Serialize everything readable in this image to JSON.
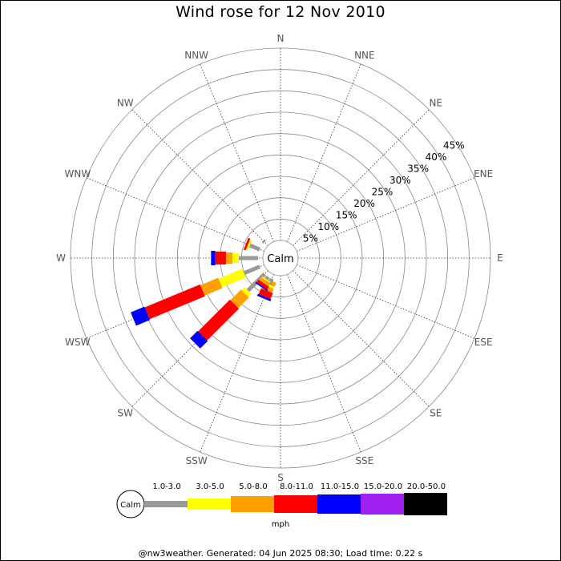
{
  "title": "Wind rose for 12 Nov 2010",
  "footer": "@nw3weather. Generated: 04 Jun 2025 08:30; Load time: 0.22 s",
  "colors": {
    "background": "#ffffff",
    "grid_ring": "#888888",
    "spoke": "#333333",
    "bins": [
      "#999999",
      "#ffff00",
      "#ffa000",
      "#ff0000",
      "#0000ff",
      "#a020f0",
      "#000000"
    ]
  },
  "chart_data": {
    "type": "wind-rose",
    "title": "Wind rose for 12 Nov 2010",
    "unit": "mph",
    "calm_label": "Calm",
    "directions": [
      "N",
      "NNE",
      "NE",
      "ENE",
      "E",
      "ESE",
      "SE",
      "SSE",
      "S",
      "SSW",
      "SW",
      "WSW",
      "W",
      "WNW",
      "NW",
      "NNW"
    ],
    "radial_ticks": [
      "5%",
      "10%",
      "15%",
      "20%",
      "25%",
      "30%",
      "35%",
      "40%",
      "45%"
    ],
    "radial_max": 45,
    "speed_bins": [
      "1.0-3.0",
      "3.0-5.0",
      "5.0-8.0",
      "8.0-11.0",
      "11.0-15.0",
      "15.0-20.0",
      "20.0-50.0"
    ],
    "series": [
      {
        "direction": "SSW",
        "values": [
          0.5,
          0,
          1.0,
          0,
          0,
          0,
          0
        ]
      },
      {
        "direction": "SW",
        "values": [
          5.5,
          1.0,
          3.5,
          10.5,
          2.5,
          0,
          0
        ]
      },
      {
        "direction": "WSW",
        "values": [
          4.0,
          6.0,
          4.5,
          14.0,
          3.5,
          0,
          0
        ]
      },
      {
        "direction": "W",
        "values": [
          4.5,
          1.5,
          1.5,
          2.5,
          1.0,
          0,
          0
        ]
      },
      {
        "direction": "WNW",
        "values": [
          2.5,
          0.5,
          0,
          0.5,
          0,
          0,
          0
        ]
      },
      {
        "direction": "NW",
        "values": [
          0.5,
          0,
          0,
          0,
          0,
          0,
          0
        ]
      },
      {
        "direction": "S",
        "values": [
          0,
          0,
          0,
          0,
          0,
          0,
          0
        ]
      }
    ],
    "custom_segments": [
      {
        "direction_deg": 202.5,
        "values": [
          1.5,
          0.5,
          1.0,
          1.5,
          0.5,
          0,
          0
        ]
      },
      {
        "direction_deg": 213.75,
        "values": [
          0.7,
          0.3,
          0.8,
          0.8,
          0.3,
          0,
          0
        ]
      }
    ]
  }
}
